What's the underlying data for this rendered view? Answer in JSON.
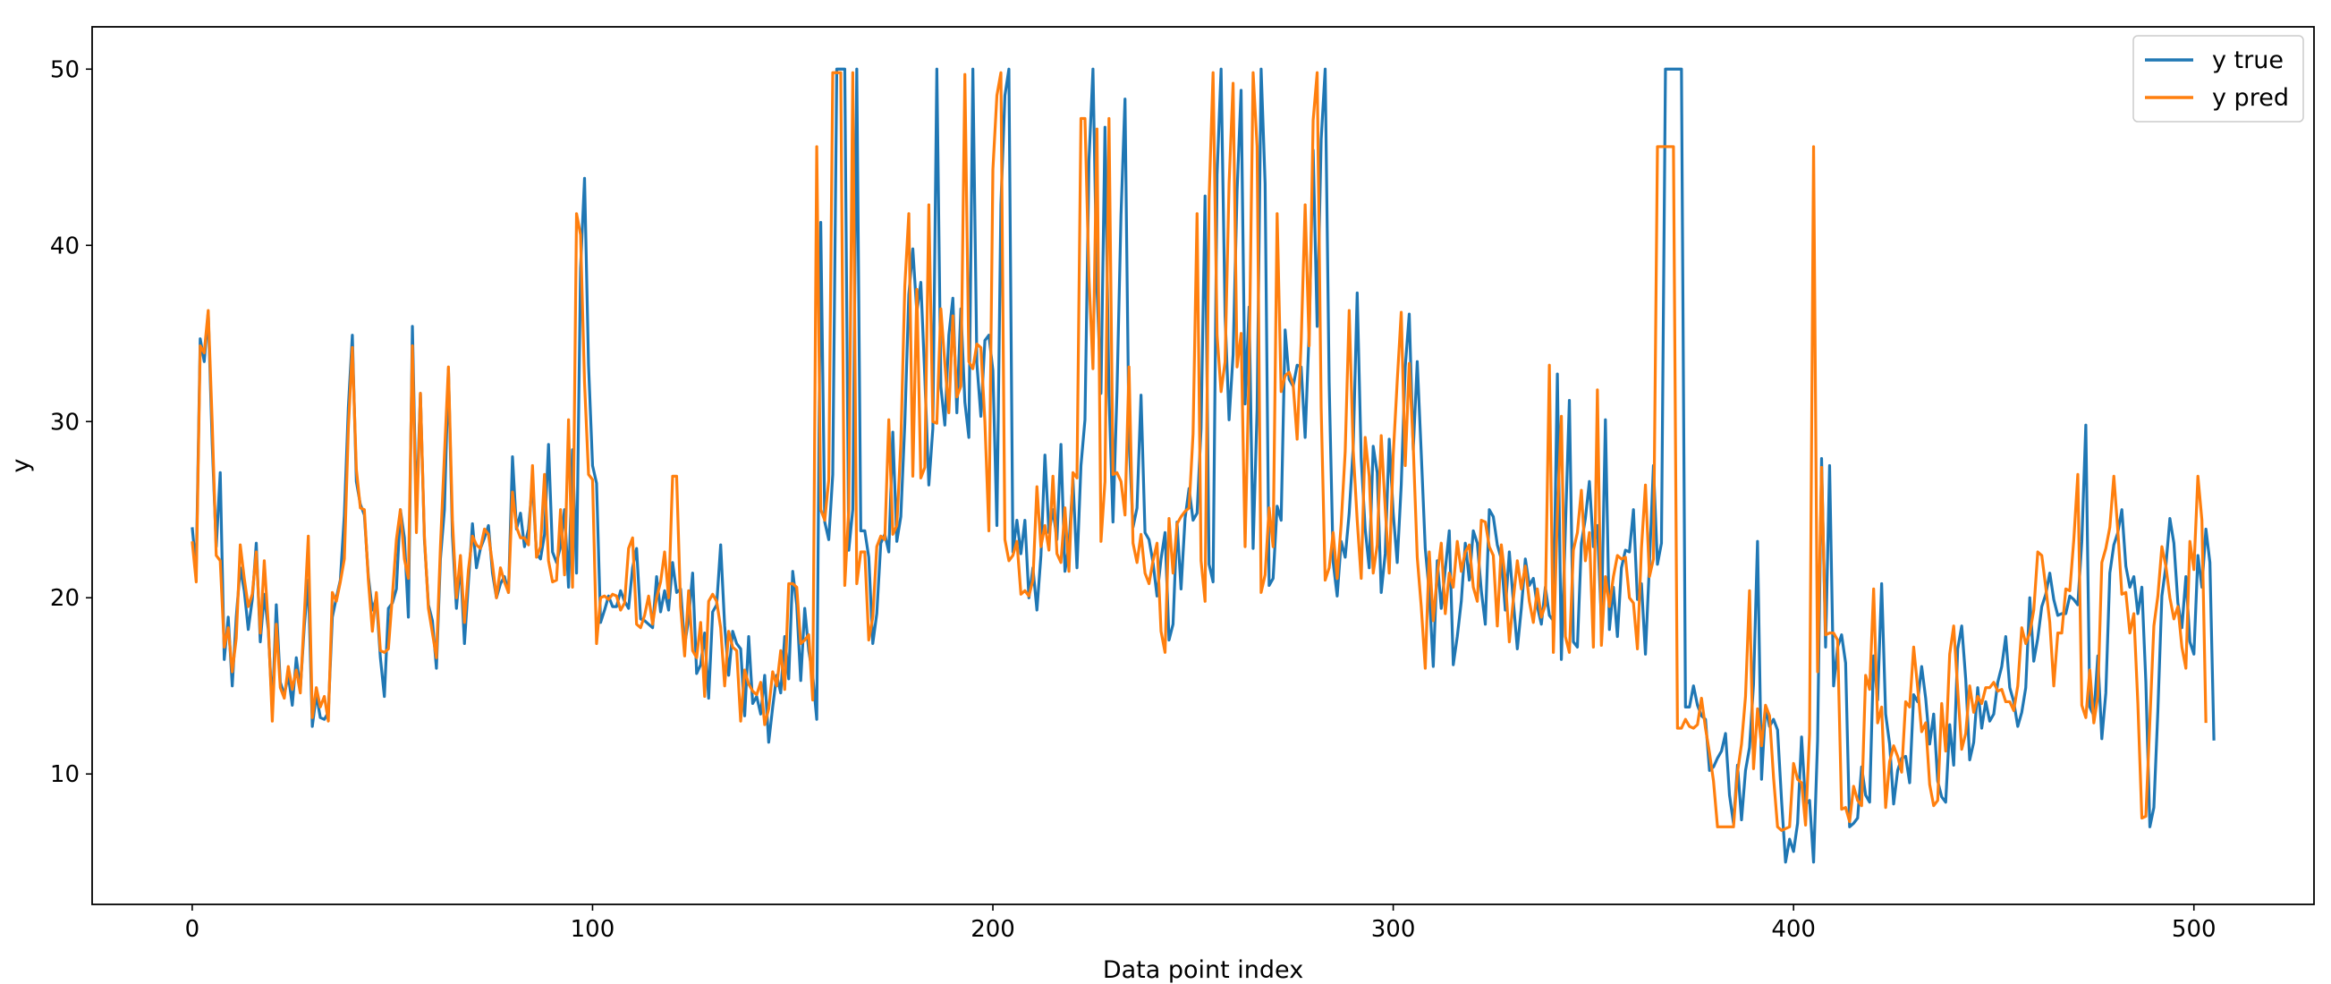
{
  "chart_data": {
    "type": "line",
    "xlabel": "Data point index",
    "ylabel": "y",
    "xlim": [
      -25,
      530
    ],
    "ylim": [
      2.6,
      52.4
    ],
    "xticks": [
      0,
      100,
      200,
      300,
      400,
      500
    ],
    "yticks": [
      10,
      20,
      30,
      40,
      50
    ],
    "grid": false,
    "legend_position": "top-right",
    "series": [
      {
        "name": "y true",
        "color": "#1f77b4",
        "values": [
          24.0,
          21.6,
          34.7,
          33.4,
          36.2,
          28.7,
          22.9,
          27.1,
          16.5,
          18.9,
          15.0,
          18.9,
          21.7,
          20.4,
          18.2,
          19.9,
          23.1,
          17.5,
          20.2,
          18.2,
          13.6,
          19.6,
          15.2,
          14.5,
          15.6,
          13.9,
          16.6,
          14.8,
          18.4,
          21.0,
          12.7,
          14.5,
          13.2,
          13.1,
          13.5,
          18.9,
          20.0,
          21.0,
          24.7,
          30.8,
          34.9,
          26.6,
          25.3,
          24.7,
          21.2,
          19.3,
          20.0,
          16.6,
          14.4,
          19.4,
          19.7,
          20.5,
          25.0,
          23.4,
          18.9,
          35.4,
          24.7,
          31.6,
          23.3,
          19.6,
          18.7,
          16.0,
          22.2,
          25.0,
          33.0,
          23.5,
          19.4,
          22.0,
          17.4,
          20.9,
          24.2,
          21.7,
          22.8,
          23.4,
          24.1,
          21.4,
          20.0,
          20.8,
          21.2,
          20.3,
          28.0,
          23.9,
          24.8,
          22.9,
          23.9,
          26.6,
          22.5,
          22.2,
          23.6,
          28.7,
          22.6,
          22.0,
          22.9,
          25.0,
          20.6,
          28.4,
          21.4,
          38.7,
          43.8,
          33.2,
          27.5,
          26.5,
          18.6,
          19.3,
          20.1,
          19.5,
          19.5,
          20.4,
          19.8,
          19.4,
          21.7,
          22.8,
          18.8,
          18.7,
          18.5,
          18.3,
          21.2,
          19.2,
          20.4,
          19.3,
          22.0,
          20.3,
          20.5,
          17.3,
          18.8,
          21.4,
          15.7,
          16.2,
          18.0,
          14.3,
          19.2,
          19.6,
          23.0,
          18.4,
          15.6,
          18.1,
          17.4,
          17.1,
          13.3,
          17.8,
          14.0,
          14.4,
          13.4,
          15.6,
          11.8,
          13.8,
          15.6,
          14.6,
          17.8,
          15.4,
          21.5,
          19.6,
          15.3,
          19.4,
          17.0,
          15.6,
          13.1,
          41.3,
          24.3,
          23.3,
          27.0,
          50.0,
          50.0,
          50.0,
          22.7,
          25.0,
          50.0,
          23.8,
          23.8,
          22.3,
          17.4,
          19.1,
          23.1,
          23.6,
          22.6,
          29.4,
          23.2,
          24.6,
          29.9,
          37.2,
          39.8,
          36.2,
          37.9,
          32.5,
          26.4,
          29.6,
          50.0,
          32.0,
          29.8,
          34.9,
          37.0,
          30.5,
          36.4,
          31.1,
          29.1,
          50.0,
          33.3,
          30.3,
          34.6,
          34.9,
          32.9,
          24.1,
          42.3,
          48.5,
          50.0,
          22.6,
          24.4,
          22.5,
          24.4,
          20.0,
          21.7,
          19.3,
          22.4,
          28.1,
          23.7,
          25.0,
          23.3,
          28.7,
          21.5,
          23.0,
          26.7,
          21.7,
          27.5,
          30.1,
          44.8,
          50.0,
          37.6,
          31.6,
          46.7,
          31.5,
          24.3,
          31.7,
          41.7,
          48.3,
          29.0,
          24.0,
          25.1,
          31.5,
          23.7,
          23.3,
          22.0,
          20.1,
          22.2,
          23.7,
          17.6,
          18.5,
          24.3,
          20.5,
          24.5,
          26.2,
          24.4,
          24.8,
          29.6,
          42.8,
          21.9,
          20.9,
          44.0,
          50.0,
          36.0,
          30.1,
          33.8,
          43.1,
          48.8,
          31.0,
          36.5,
          22.8,
          30.7,
          50.0,
          43.5,
          20.7,
          21.1,
          25.2,
          24.4,
          35.2,
          32.4,
          32.0,
          33.2,
          33.1,
          29.1,
          35.1,
          45.4,
          35.4,
          46.0,
          50.0,
          32.2,
          22.0,
          20.1,
          23.2,
          22.3,
          24.8,
          28.5,
          37.3,
          27.9,
          23.9,
          21.7,
          28.6,
          27.1,
          20.3,
          22.5,
          29.0,
          24.8,
          22.0,
          26.4,
          33.1,
          36.1,
          28.4,
          33.4,
          28.2,
          22.8,
          20.3,
          16.1,
          22.1,
          19.4,
          21.6,
          23.8,
          16.2,
          17.8,
          19.8,
          23.1,
          21.0,
          23.8,
          23.1,
          20.4,
          18.5,
          25.0,
          24.6,
          23.0,
          22.2,
          19.3,
          22.6,
          19.8,
          17.1,
          19.4,
          22.2,
          20.7,
          21.1,
          19.5,
          18.5,
          20.6,
          19.0,
          18.7,
          32.7,
          16.5,
          23.9,
          31.2,
          17.5,
          17.2,
          23.1,
          24.5,
          26.6,
          22.9,
          24.1,
          18.6,
          30.1,
          18.2,
          20.6,
          17.8,
          21.7,
          22.7,
          22.6,
          25.0,
          19.9,
          20.8,
          16.8,
          21.9,
          27.5,
          21.9,
          23.1,
          50.0,
          50.0,
          50.0,
          50.0,
          50.0,
          13.8,
          13.8,
          15.0,
          13.9,
          13.3,
          13.1,
          10.2,
          10.4,
          10.9,
          11.3,
          12.3,
          8.8,
          7.2,
          10.5,
          7.4,
          10.2,
          11.5,
          15.1,
          23.2,
          9.7,
          13.8,
          12.7,
          13.1,
          12.5,
          8.5,
          5.0,
          6.3,
          5.6,
          7.2,
          12.1,
          8.3,
          8.5,
          5.0,
          11.9,
          27.9,
          17.2,
          27.5,
          15.0,
          17.2,
          17.9,
          16.3,
          7.0,
          7.2,
          7.5,
          10.4,
          8.8,
          8.4,
          16.7,
          14.2,
          20.8,
          13.4,
          11.7,
          8.3,
          10.2,
          10.9,
          11.0,
          9.5,
          14.5,
          14.1,
          16.1,
          14.3,
          11.7,
          13.4,
          9.6,
          8.7,
          8.4,
          12.8,
          10.5,
          17.1,
          18.4,
          15.4,
          10.8,
          11.8,
          14.9,
          12.6,
          14.1,
          13.0,
          13.4,
          15.2,
          16.1,
          17.8,
          14.9,
          14.1,
          12.7,
          13.5,
          14.9,
          20.0,
          16.4,
          17.7,
          19.5,
          20.2,
          21.4,
          19.9,
          19.0,
          19.1,
          19.1,
          20.1,
          19.9,
          19.6,
          23.2,
          29.8,
          13.8,
          13.3,
          16.7,
          12.0,
          14.6,
          21.4,
          23.0,
          23.7,
          25.0,
          21.8,
          20.6,
          21.2,
          19.1,
          20.6,
          15.2,
          7.0,
          8.1,
          13.6,
          20.1,
          21.8,
          24.5,
          23.1,
          19.7,
          18.3,
          21.2,
          17.5,
          16.8,
          22.4,
          20.6,
          23.9,
          22.0,
          11.9
        ]
      },
      {
        "name": "y pred",
        "color": "#ff7f0e",
        "values": [
          23.2,
          20.9,
          34.3,
          33.9,
          36.3,
          29.9,
          22.4,
          22.1,
          17.2,
          18.3,
          15.8,
          17.7,
          23.0,
          21.1,
          19.5,
          20.2,
          22.6,
          18.0,
          22.1,
          18.5,
          13.0,
          18.5,
          14.9,
          14.3,
          16.1,
          14.8,
          15.9,
          14.6,
          19.0,
          23.5,
          13.2,
          14.9,
          13.8,
          14.4,
          13.0,
          20.3,
          19.8,
          20.9,
          22.2,
          29.6,
          34.2,
          27.3,
          25.1,
          25.0,
          21.0,
          18.1,
          20.3,
          17.0,
          16.9,
          17.1,
          20.1,
          23.3,
          25.0,
          22.2,
          21.1,
          34.3,
          23.7,
          31.6,
          23.5,
          19.4,
          18.0,
          16.6,
          22.9,
          28.1,
          33.1,
          24.4,
          20.0,
          22.4,
          18.6,
          21.6,
          23.5,
          23.0,
          22.8,
          23.9,
          23.6,
          21.9,
          20.0,
          21.7,
          20.9,
          20.3,
          26.0,
          24.0,
          23.4,
          23.4,
          23.0,
          27.5,
          22.3,
          22.9,
          27.0,
          22.1,
          20.9,
          21.0,
          25.0,
          21.3,
          30.1,
          20.6,
          41.8,
          40.6,
          32.2,
          27.0,
          26.7,
          17.4,
          20.0,
          20.1,
          19.9,
          20.2,
          20.1,
          19.3,
          19.7,
          22.8,
          23.4,
          18.5,
          18.3,
          19.0,
          20.1,
          18.5,
          20.0,
          20.9,
          22.6,
          20.0,
          26.9,
          26.9,
          19.5,
          16.7,
          20.4,
          17.0,
          16.6,
          18.6,
          14.4,
          19.8,
          20.2,
          19.8,
          18.3,
          15.0,
          18.1,
          17.2,
          17.0,
          13.0,
          15.9,
          15.1,
          14.7,
          14.5,
          15.2,
          12.8,
          13.7,
          15.8,
          15.0,
          17.0,
          14.8,
          20.8,
          20.8,
          20.6,
          17.4,
          17.6,
          17.9,
          14.2,
          45.6,
          25.0,
          24.4,
          26.7,
          49.8,
          49.8,
          49.8,
          20.7,
          25.0,
          49.8,
          20.8,
          22.6,
          22.6,
          17.6,
          18.9,
          22.9,
          23.5,
          23.3,
          30.1,
          23.6,
          24.1,
          28.7,
          37.7,
          41.8,
          26.9,
          37.5,
          26.8,
          27.4,
          42.3,
          30.0,
          29.9,
          36.4,
          33.3,
          30.5,
          36.0,
          31.4,
          32.0,
          49.7,
          33.4,
          33.0,
          34.4,
          34.2,
          30.0,
          23.8,
          44.3,
          48.5,
          49.8,
          23.3,
          22.1,
          22.4,
          23.2,
          20.2,
          20.4,
          20.1,
          21.0,
          26.3,
          22.9,
          24.1,
          22.7,
          26.9,
          22.5,
          22.0,
          25.1,
          21.5,
          27.1,
          26.8,
          47.2,
          47.2,
          38.2,
          33.0,
          46.6,
          23.2,
          26.6,
          47.2,
          27.0,
          27.1,
          26.6,
          24.7,
          33.1,
          23.1,
          22.0,
          23.6,
          21.4,
          20.8,
          22.1,
          23.1,
          18.1,
          16.9,
          24.5,
          21.4,
          24.2,
          24.6,
          24.9,
          25.1,
          29.3,
          41.8,
          22.1,
          19.8,
          42.6,
          49.8,
          34.9,
          31.7,
          33.4,
          43.5,
          49.2,
          33.1,
          35.0,
          22.9,
          33.1,
          49.8,
          45.6,
          20.3,
          21.3,
          25.1,
          22.9,
          41.8,
          31.7,
          32.6,
          32.8,
          32.1,
          29.0,
          34.5,
          42.3,
          34.3,
          47.1,
          49.8,
          30.8,
          21.0,
          21.7,
          23.7,
          21.1,
          24.2,
          28.3,
          36.3,
          28.4,
          24.4,
          21.1,
          29.1,
          26.9,
          21.4,
          23.0,
          29.2,
          25.1,
          21.4,
          28.1,
          32.3,
          36.2,
          27.5,
          33.3,
          28.6,
          22.3,
          19.5,
          16.0,
          22.6,
          18.7,
          21.3,
          23.1,
          19.1,
          21.4,
          20.6,
          23.2,
          21.5,
          22.6,
          23.0,
          20.6,
          19.8,
          24.4,
          24.3,
          22.9,
          22.4,
          18.4,
          23.0,
          21.1,
          17.5,
          19.9,
          22.1,
          20.5,
          21.8,
          19.8,
          18.6,
          20.5,
          18.9,
          19.6,
          33.2,
          16.9,
          24.7,
          30.3,
          17.8,
          16.9,
          22.7,
          23.7,
          26.1,
          22.1,
          23.7,
          17.2,
          31.8,
          17.3,
          21.2,
          19.5,
          21.2,
          22.4,
          22.2,
          22.3,
          20.0,
          19.7,
          17.1,
          22.8,
          26.4,
          21.2,
          22.2,
          45.6,
          45.6,
          45.6,
          45.6,
          45.6,
          12.6,
          12.6,
          13.1,
          12.7,
          12.6,
          12.8,
          14.3,
          12.6,
          11.2,
          9.6,
          7.0,
          7.0,
          7.0,
          7.0,
          7.0,
          10.1,
          11.7,
          14.4,
          20.4,
          10.3,
          13.7,
          11.6,
          13.9,
          13.3,
          9.8,
          7.0,
          6.8,
          6.9,
          7.0,
          10.6,
          9.7,
          9.5,
          7.1,
          12.3,
          45.6,
          15.8,
          27.4,
          17.9,
          18.0,
          18.0,
          17.6,
          8.0,
          8.1,
          7.3,
          9.3,
          8.5,
          8.2,
          15.6,
          14.8,
          20.5,
          12.9,
          13.8,
          8.1,
          10.7,
          11.6,
          11.0,
          10.1,
          14.1,
          13.8,
          17.2,
          14.9,
          12.4,
          12.9,
          9.4,
          8.2,
          8.5,
          14.0,
          11.3,
          16.8,
          18.4,
          14.8,
          11.4,
          12.3,
          15.0,
          13.5,
          14.4,
          14.0,
          14.9,
          14.9,
          15.2,
          14.7,
          14.8,
          14.1,
          14.1,
          13.6,
          15.0,
          18.3,
          17.4,
          18.0,
          19.3,
          22.6,
          22.4,
          20.6,
          18.6,
          15.0,
          18.0,
          18.0,
          20.5,
          20.4,
          23.3,
          27.0,
          13.9,
          13.2,
          15.9,
          12.9,
          14.4,
          22.0,
          22.8,
          24.0,
          26.9,
          23.8,
          20.2,
          20.3,
          18.0,
          19.1,
          14.0,
          7.5,
          7.6,
          13.0,
          18.4,
          20.1,
          22.9,
          21.8,
          20.0,
          18.8,
          19.5,
          17.2,
          16.0,
          23.2,
          21.6,
          26.9,
          24.4,
          12.9
        ]
      }
    ]
  }
}
